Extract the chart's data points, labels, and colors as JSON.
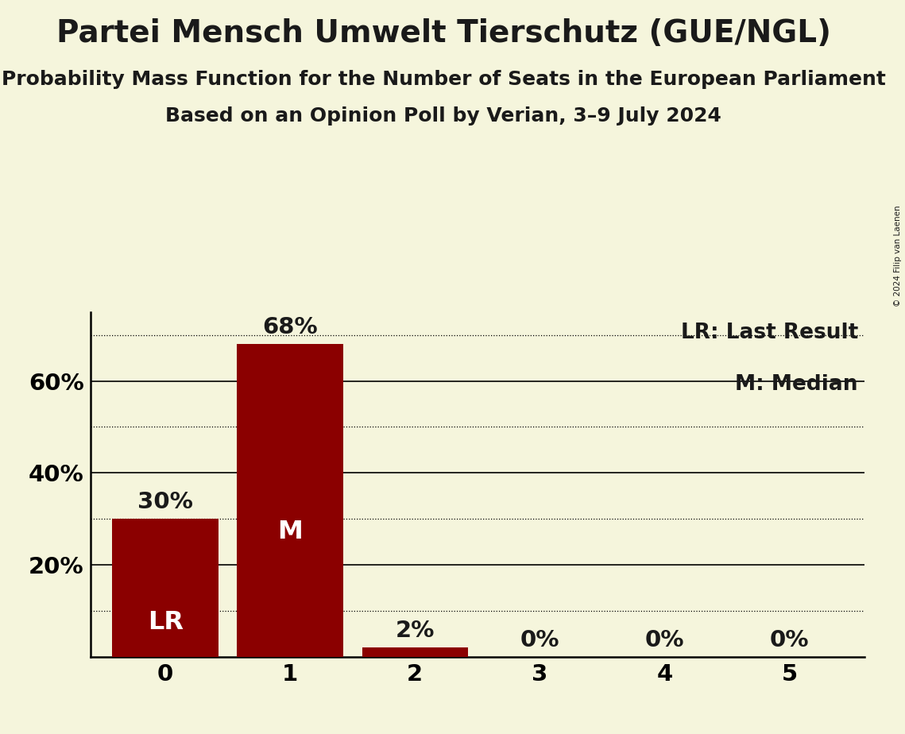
{
  "title": "Partei Mensch Umwelt Tierschutz (GUE/NGL)",
  "subtitle1": "Probability Mass Function for the Number of Seats in the European Parliament",
  "subtitle2": "Based on an Opinion Poll by Verian, 3–9 July 2024",
  "copyright": "© 2024 Filip van Laenen",
  "categories": [
    0,
    1,
    2,
    3,
    4,
    5
  ],
  "values": [
    30,
    68,
    2,
    0,
    0,
    0
  ],
  "bar_color": "#8B0000",
  "background_color": "#F5F5DC",
  "text_color": "#1a1a1a",
  "bar_text_color": "#FFFFFF",
  "ylim": [
    0,
    75
  ],
  "solid_gridlines": [
    20,
    40,
    60
  ],
  "dotted_gridlines": [
    10,
    30,
    50,
    70
  ],
  "legend_text1": "LR: Last Result",
  "legend_text2": "M: Median",
  "lr_seat": 0,
  "median_seat": 1,
  "title_fontsize": 28,
  "subtitle1_fontsize": 18,
  "subtitle2_fontsize": 18,
  "tick_fontsize": 21,
  "bar_label_fontsize": 21,
  "bar_inner_fontsize": 23,
  "legend_fontsize": 19
}
